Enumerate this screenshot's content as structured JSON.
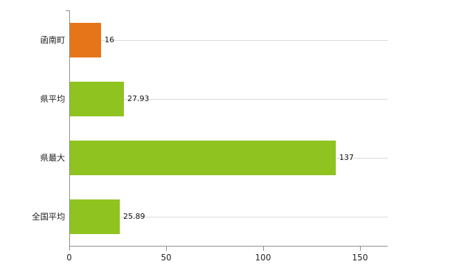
{
  "chart_data": {
    "type": "bar",
    "orientation": "horizontal",
    "title": "",
    "categories": [
      "函南町",
      "県平均",
      "県最大",
      "全国平均"
    ],
    "values": [
      16,
      27.93,
      137,
      25.89
    ],
    "value_labels": [
      "16",
      "27.93",
      "137",
      "25.89"
    ],
    "bar_colors": [
      "#e6751a",
      "#8fc31f",
      "#8fc31f",
      "#8fc31f"
    ],
    "x_ticks": [
      0,
      50,
      100,
      150
    ],
    "x_tick_labels": [
      "0",
      "50",
      "100",
      "150"
    ],
    "xlim": [
      0,
      164
    ],
    "grid": "horizontal-category-lines",
    "legend_position": "none",
    "colors": {
      "axis": "#8a8a8a",
      "gridline": "#d9d9d9",
      "highlight_bar": "#e6751a",
      "default_bar": "#8fc31f",
      "background": "#ffffff",
      "text": "#222222"
    }
  }
}
